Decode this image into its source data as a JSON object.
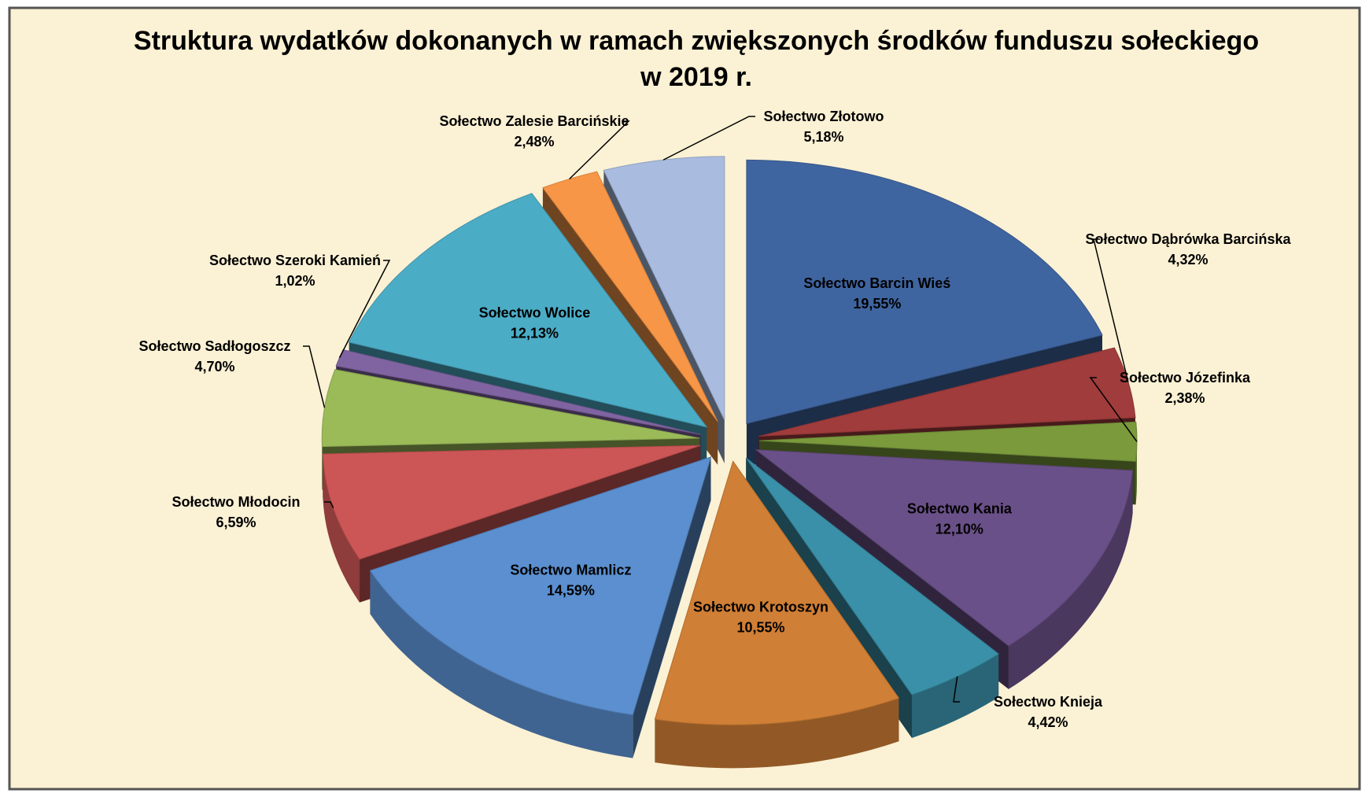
{
  "chart_data": {
    "type": "pie3d",
    "title": [
      "Struktura wydatków dokonanych w ramach zwiększonych środków funduszu sołeckiego",
      "w 2019 r."
    ],
    "categories": [
      "Sołectwo Barcin Wieś",
      "Sołectwo Dąbrówka Barcińska",
      "Sołectwo Józefinka",
      "Sołectwo Kania",
      "Sołectwo Knieja",
      "Sołectwo Krotoszyn",
      "Sołectwo Mamlicz",
      "Sołectwo Młodocin",
      "Sołectwo Sadłogoszcz",
      "Sołectwo Szeroki Kamień",
      "Sołectwo Wolice",
      "Sołectwo Zalesie Barcińskie",
      "Sołectwo Złotowo"
    ],
    "values": [
      19.55,
      4.32,
      2.38,
      12.1,
      4.42,
      10.55,
      14.59,
      6.59,
      4.7,
      1.02,
      12.13,
      2.48,
      5.18
    ],
    "value_labels": [
      "19,55%",
      "4,32%",
      "2,38%",
      "12,10%",
      "4,42%",
      "10,55%",
      "14,59%",
      "6,59%",
      "4,70%",
      "1,02%",
      "12,13%",
      "2,48%",
      "5,18%"
    ],
    "colors": [
      "#3f65a0",
      "#a03c3c",
      "#7a9a3c",
      "#6a5088",
      "#3a90a8",
      "#d07f36",
      "#5b8fcf",
      "#cc5656",
      "#9bbb59",
      "#8064a2",
      "#4bacc6",
      "#f79646",
      "#a9bcdf"
    ]
  }
}
